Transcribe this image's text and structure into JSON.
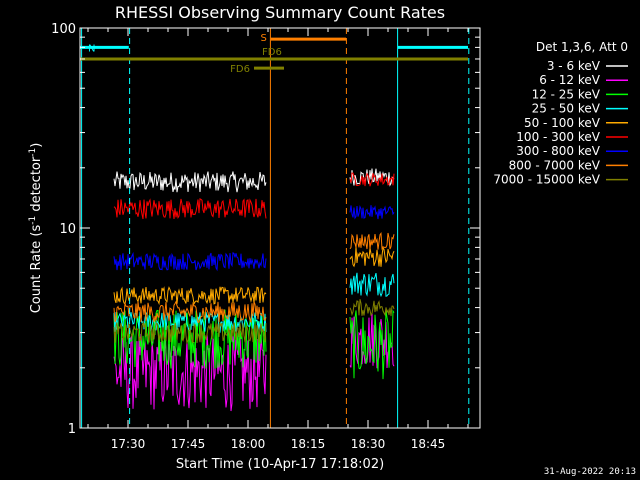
{
  "chart_data": {
    "type": "line",
    "title": "RHESSI Observing Summary Count Rates",
    "xlabel": "Start Time (10-Apr-17 17:18:02)",
    "ylabel_main": "Count Rate (s",
    "ylabel_sup1": "-1",
    "ylabel_mid": " detector",
    "ylabel_sup2": "-1",
    "ylabel_end": ")",
    "y_scale": "log",
    "xlim": [
      "17:18",
      "18:58"
    ],
    "ylim": [
      1,
      100
    ],
    "x_tick_labels": [
      "17:30",
      "17:45",
      "18:00",
      "18:15",
      "18:30",
      "18:45"
    ],
    "x_tick_minutes": [
      30,
      45,
      60,
      75,
      90,
      105
    ],
    "x_start_minute": 18,
    "x_end_minute": 118,
    "y_tick_labels": [
      "1",
      "10",
      "100"
    ],
    "legend_title": "Det 1,3,6, Att 0",
    "series": [
      {
        "name": "3 - 6 keV",
        "color": "#ffffff",
        "segments": [
          {
            "level": 17,
            "jitter": 0.12
          },
          {
            "level": 18,
            "jitter": 0.1
          }
        ]
      },
      {
        "name": "6 - 12 keV",
        "color": "#ff00ff",
        "segments": [
          {
            "level": 1.9,
            "jitter": 0.45
          },
          {
            "level": 2.8,
            "jitter": 0.35
          }
        ]
      },
      {
        "name": "12 - 25 keV",
        "color": "#00ff00",
        "segments": [
          {
            "level": 2.8,
            "jitter": 0.35
          },
          {
            "level": 2.6,
            "jitter": 0.4
          }
        ]
      },
      {
        "name": "25 - 50 keV",
        "color": "#00ffff",
        "segments": [
          {
            "level": 3.4,
            "jitter": 0.12
          },
          {
            "level": 5.3,
            "jitter": 0.15
          }
        ]
      },
      {
        "name": "50 - 100 keV",
        "color": "#ffaa00",
        "segments": [
          {
            "level": 4.6,
            "jitter": 0.1
          },
          {
            "level": 7.2,
            "jitter": 0.12
          }
        ]
      },
      {
        "name": "100 - 300 keV",
        "color": "#ff0000",
        "segments": [
          {
            "level": 12.5,
            "jitter": 0.12
          },
          {
            "level": 17.5,
            "jitter": 0.08
          }
        ]
      },
      {
        "name": "300 - 800 keV",
        "color": "#0000ff",
        "segments": [
          {
            "level": 6.8,
            "jitter": 0.1
          },
          {
            "level": 12.0,
            "jitter": 0.08
          }
        ]
      },
      {
        "name": "800 - 7000 keV",
        "color": "#ff7f00",
        "segments": [
          {
            "level": 3.8,
            "jitter": 0.12
          },
          {
            "level": 8.6,
            "jitter": 0.1
          }
        ]
      },
      {
        "name": "7000 - 15000 keV",
        "color": "#808000",
        "segments": [
          {
            "level": 3.0,
            "jitter": 0.12
          },
          {
            "level": 4.0,
            "jitter": 0.1
          }
        ]
      }
    ],
    "data_intervals": [
      {
        "start_minute": 26.5,
        "end_minute": 64.5
      },
      {
        "start_minute": 85.5,
        "end_minute": 96.5
      }
    ],
    "flag_bars": [
      {
        "label": "N",
        "color": "#00ffff",
        "level": 80,
        "intervals": [
          [
            18,
            30.2
          ],
          [
            97.5,
            115
          ]
        ]
      },
      {
        "label": "S",
        "color": "#ff7f00",
        "level": 88,
        "intervals": [
          [
            65.7,
            84.5
          ]
        ]
      },
      {
        "label": "FD6",
        "color": "#808000",
        "level": 70,
        "intervals": [
          [
            18,
            115
          ]
        ]
      },
      {
        "label": "FD6",
        "color": "#808000",
        "level": 63,
        "intervals": [
          [
            61.5,
            69
          ]
        ]
      }
    ],
    "vertical_markers": [
      {
        "minute": 18.4,
        "color": "#00ffff",
        "style": "solid"
      },
      {
        "minute": 30.4,
        "color": "#00ffff",
        "style": "dashed"
      },
      {
        "minute": 65.6,
        "color": "#ff7f00",
        "style": "solid"
      },
      {
        "minute": 84.6,
        "color": "#ff7f00",
        "style": "dashed"
      },
      {
        "minute": 97.4,
        "color": "#00ffff",
        "style": "solid"
      },
      {
        "minute": 115.2,
        "color": "#00ffff",
        "style": "dashed"
      }
    ],
    "footer_date": "31-Aug-2022 20:13"
  }
}
